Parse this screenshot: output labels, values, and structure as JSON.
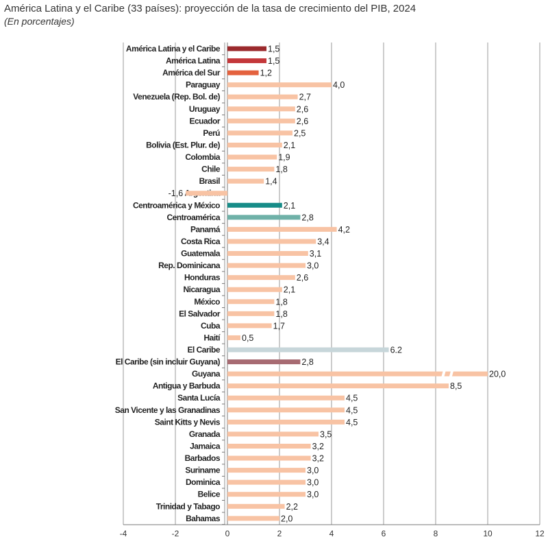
{
  "chart_data": {
    "type": "bar",
    "orientation": "horizontal",
    "title": "América Latina y el Caribe (33 países): proyección de la tasa de crecimiento del PIB, 2024",
    "subtitle": "(En porcentajes)",
    "xlim": [
      -4,
      12
    ],
    "xticks": [
      "-4",
      "-2",
      "0",
      "2",
      "4",
      "6",
      "8",
      "10",
      "12"
    ],
    "grid": true,
    "axis_break": {
      "category": "Guyana",
      "note": "bar truncated with break marks"
    },
    "colors": {
      "agg_total": "#9b2a2d",
      "agg_latam": "#c4373a",
      "agg_south": "#e4623e",
      "country": "#f8c3a4",
      "agg_central_mex": "#178c88",
      "agg_central": "#6fb1a8",
      "agg_caribbean": "#c7d6da",
      "agg_caribbean_ex": "#a76b72"
    },
    "categories": [
      "América Latina y el Caribe",
      "América Latina",
      "América del Sur",
      "Paraguay",
      "Venezuela (Rep. Bol. de)",
      "Uruguay",
      "Ecuador",
      "Perú",
      "Bolivia (Est. Plur. de)",
      "Colombia",
      "Chile",
      "Brasil",
      "Argentina",
      "Centroamérica y México",
      "Centroamérica",
      "Panamá",
      "Costa Rica",
      "Guatemala",
      "Rep. Dominicana",
      "Honduras",
      "Nicaragua",
      "México",
      "El Salvador",
      "Cuba",
      "Haití",
      "El Caribe",
      "El Caribe (sin incluir Guyana)",
      "Guyana",
      "Antigua y Barbuda",
      "Santa Lucía",
      "San Vicente y las Granadinas",
      "Saint Kitts y Nevis",
      "Granada",
      "Jamaica",
      "Barbados",
      "Suriname",
      "Dominica",
      "Belice",
      "Trinidad y Tabago",
      "Bahamas"
    ],
    "values": [
      1.5,
      1.5,
      1.2,
      4.0,
      2.7,
      2.6,
      2.6,
      2.5,
      2.1,
      1.9,
      1.8,
      1.4,
      -1.6,
      2.1,
      2.8,
      4.2,
      3.4,
      3.1,
      3.0,
      2.6,
      2.1,
      1.8,
      1.8,
      1.7,
      0.5,
      6.2,
      2.8,
      20.0,
      8.5,
      4.5,
      4.5,
      4.5,
      3.5,
      3.2,
      3.2,
      3.0,
      3.0,
      3.0,
      2.2,
      2.0
    ],
    "value_labels": [
      "1,5",
      "1,5",
      "1,2",
      "4,0",
      "2,7",
      "2,6",
      "2,6",
      "2,5",
      "2,1",
      "1,9",
      "1,8",
      "1,4",
      "-1,6",
      "2,1",
      "2,8",
      "4,2",
      "3,4",
      "3,1",
      "3,0",
      "2,6",
      "2,1",
      "1,8",
      "1,8",
      "1,7",
      "0,5",
      "6.2",
      "2,8",
      "20,0",
      "8,5",
      "4,5",
      "4,5",
      "4,5",
      "3,5",
      "3,2",
      "3,2",
      "3,0",
      "3,0",
      "3,0",
      "2,2",
      "2,0"
    ],
    "bar_color_keys": [
      "agg_total",
      "agg_latam",
      "agg_south",
      "country",
      "country",
      "country",
      "country",
      "country",
      "country",
      "country",
      "country",
      "country",
      "country",
      "agg_central_mex",
      "agg_central",
      "country",
      "country",
      "country",
      "country",
      "country",
      "country",
      "country",
      "country",
      "country",
      "country",
      "agg_caribbean",
      "agg_caribbean_ex",
      "country",
      "country",
      "country",
      "country",
      "country",
      "country",
      "country",
      "country",
      "country",
      "country",
      "country",
      "country",
      "country"
    ]
  }
}
